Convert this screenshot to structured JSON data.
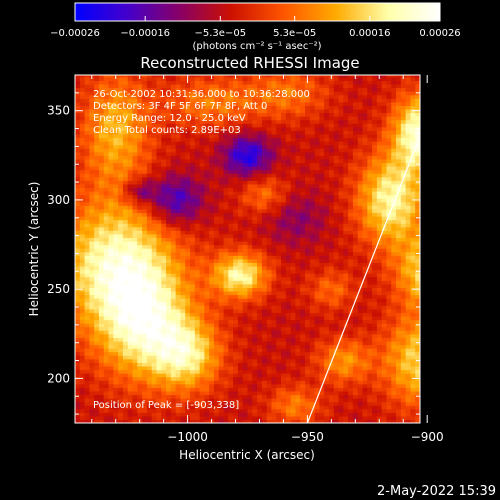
{
  "chart_data": {
    "type": "heatmap",
    "title": "Reconstructed RHESSI Image",
    "xlabel": "Heliocentric X (arcsec)",
    "ylabel": "Heliocentric Y (arcsec)",
    "xlim": [
      -1047,
      -903
    ],
    "ylim": [
      175,
      370
    ],
    "x_ticks": [
      -1000,
      -950,
      -900
    ],
    "x_tick_labels": [
      "−1000",
      "−950",
      "−900"
    ],
    "y_ticks": [
      200,
      250,
      300,
      350
    ],
    "y_tick_labels": [
      "200",
      "250",
      "300",
      "350"
    ],
    "colorbar": {
      "ticks": [
        -0.00026,
        -0.00016,
        -5.3e-05,
        5.3e-05,
        0.00016,
        0.00026
      ],
      "tick_labels": [
        "−0.00026",
        "−0.00016",
        "−5.3e−05",
        "5.3e−05",
        "0.00016",
        "0.00026"
      ],
      "unit_label": "(photons cm⁻² s⁻¹ asec⁻²)",
      "range": [
        -0.00026,
        0.00026
      ],
      "colormap_stops": [
        "#0000ff",
        "#4400cc",
        "#880066",
        "#cc1100",
        "#ff5500",
        "#ffaa00",
        "#ffffaa",
        "#ffffff"
      ]
    },
    "limb": [
      [
        -950,
        175
      ],
      [
        -893,
        370
      ]
    ],
    "annotations": [
      "26-Oct-2002 10:31:36.000 to 10:36:28.000",
      "Detectors: 3F 4F 5F 6F 7F 8F, Att 0",
      "Energy Range: 12.0 - 25.0 keV",
      "Clean    Total counts: 2.89E+03"
    ],
    "peak_label": "Position of Peak = [-903,338]",
    "sources": [
      {
        "x": -1030,
        "y": 265,
        "sx": 18,
        "sy": 25,
        "amp": 0.00024
      },
      {
        "x": -1018,
        "y": 230,
        "sx": 14,
        "sy": 22,
        "amp": 0.00022
      },
      {
        "x": -1000,
        "y": 213,
        "sx": 10,
        "sy": 14,
        "amp": 0.00018
      },
      {
        "x": -978,
        "y": 258,
        "sx": 8,
        "sy": 9,
        "amp": 0.00023
      },
      {
        "x": -968,
        "y": 303,
        "sx": 7,
        "sy": 8,
        "amp": 0.0001
      },
      {
        "x": -1030,
        "y": 340,
        "sx": 10,
        "sy": 22,
        "amp": 0.00016
      },
      {
        "x": -990,
        "y": 355,
        "sx": 14,
        "sy": 10,
        "amp": 0.00011
      },
      {
        "x": -958,
        "y": 360,
        "sx": 12,
        "sy": 10,
        "amp": 0.0001
      },
      {
        "x": -903,
        "y": 338,
        "sx": 8,
        "sy": 15,
        "amp": 0.00026
      },
      {
        "x": -915,
        "y": 300,
        "sx": 10,
        "sy": 18,
        "amp": 0.00023
      },
      {
        "x": -898,
        "y": 260,
        "sx": 10,
        "sy": 14,
        "amp": 0.00021
      },
      {
        "x": -903,
        "y": 210,
        "sx": 11,
        "sy": 18,
        "amp": 0.00019
      },
      {
        "x": -935,
        "y": 210,
        "sx": 8,
        "sy": 9,
        "amp": 0.00013
      },
      {
        "x": -955,
        "y": 185,
        "sx": 8,
        "sy": 8,
        "amp": 0.00011
      },
      {
        "x": -940,
        "y": 250,
        "sx": 7,
        "sy": 8,
        "amp": 9e-05
      },
      {
        "x": -1005,
        "y": 300,
        "sx": 8,
        "sy": 10,
        "amp": -0.00016
      },
      {
        "x": -975,
        "y": 325,
        "sx": 7,
        "sy": 8,
        "amp": -0.00018
      },
      {
        "x": -1020,
        "y": 305,
        "sx": 5,
        "sy": 5,
        "amp": -0.00012
      },
      {
        "x": -955,
        "y": 290,
        "sx": 9,
        "sy": 10,
        "amp": -7e-05
      }
    ]
  },
  "timestamp": "2-May-2022 15:39"
}
